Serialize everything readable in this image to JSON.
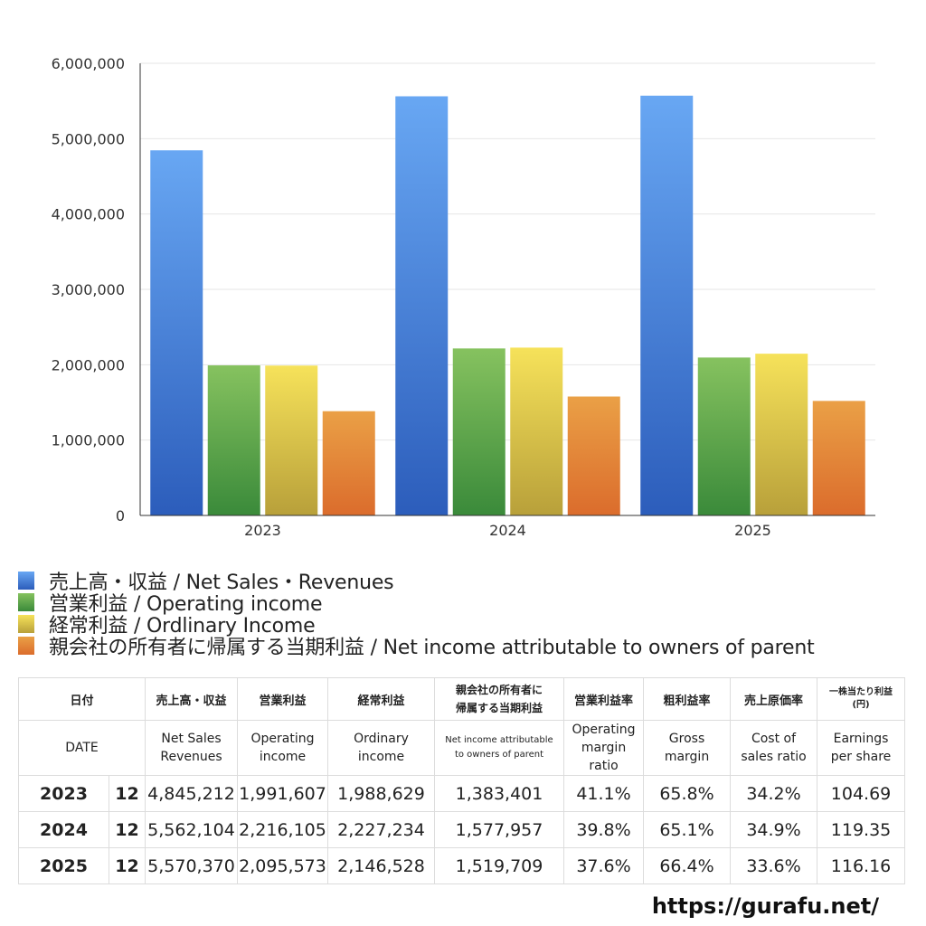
{
  "colors": {
    "net_sales": "#3f7fd9",
    "operating_income": "#4f9e45",
    "ordinary_income": "#e0c848",
    "net_income": "#e0863a"
  },
  "chart_data": {
    "type": "bar",
    "categories": [
      "2023",
      "2024",
      "2025"
    ],
    "series": [
      {
        "name": "売上高・収益 / Net Sales・Revenues",
        "values": [
          4845212,
          5562104,
          5570370
        ]
      },
      {
        "name": "営業利益 / Operating income",
        "values": [
          1991607,
          2216105,
          2095573
        ]
      },
      {
        "name": "経常利益 / Ordlinary Income",
        "values": [
          1988629,
          2227234,
          2146528
        ]
      },
      {
        "name": "親会社の所有者に帰属する当期利益 / Net income attributable to owners of parent",
        "values": [
          1383401,
          1577957,
          1519709
        ]
      }
    ],
    "ylim": [
      0,
      6000000
    ],
    "yticks": [
      "0",
      "1,000,000",
      "2,000,000",
      "3,000,000",
      "4,000,000",
      "5,000,000",
      "6,000,000"
    ],
    "grid": true,
    "legend_position": "bottom"
  },
  "legend": [
    "売上高・収益 / Net Sales・Revenues",
    "営業利益 / Operating income",
    "経常利益 / Ordlinary Income",
    "親会社の所有者に帰属する当期利益 / Net income attributable to owners of parent"
  ],
  "table": {
    "header_jp": {
      "date": "日付",
      "net_sales": "売上高・収益",
      "operating_income": "営業利益",
      "ordinary_income": "経常利益",
      "net_income_l1": "親会社の所有者に",
      "net_income_l2": "帰属する当期利益",
      "op_margin": "営業利益率",
      "gross_margin": "粗利益率",
      "cost_ratio": "売上原価率",
      "eps_l1": "一株当たり利益",
      "eps_l2": "(円)"
    },
    "header_en": {
      "date": "DATE",
      "net_sales_l1": "Net Sales",
      "net_sales_l2": "Revenues",
      "operating_income_l1": "Operating",
      "operating_income_l2": "income",
      "ordinary_income_l1": "Ordinary",
      "ordinary_income_l2": "income",
      "net_income_l1": "Net income attributable",
      "net_income_l2": "to owners of parent",
      "op_margin_l1": "Operating",
      "op_margin_l2": "margin",
      "op_margin_l3": "ratio",
      "gross_margin_l1": "Gross",
      "gross_margin_l2": "margin",
      "cost_ratio_l1": "Cost of",
      "cost_ratio_l2": "sales ratio",
      "eps_l1": "Earnings",
      "eps_l2": "per share"
    },
    "rows": [
      {
        "year": "2023",
        "month": "12",
        "net_sales": "4,845,212",
        "operating_income": "1,991,607",
        "ordinary_income": "1,988,629",
        "net_income": "1,383,401",
        "op_margin": "41.1%",
        "gross_margin": "65.8%",
        "cost_ratio": "34.2%",
        "eps": "104.69"
      },
      {
        "year": "2024",
        "month": "12",
        "net_sales": "5,562,104",
        "operating_income": "2,216,105",
        "ordinary_income": "2,227,234",
        "net_income": "1,577,957",
        "op_margin": "39.8%",
        "gross_margin": "65.1%",
        "cost_ratio": "34.9%",
        "eps": "119.35"
      },
      {
        "year": "2025",
        "month": "12",
        "net_sales": "5,570,370",
        "operating_income": "2,095,573",
        "ordinary_income": "2,146,528",
        "net_income": "1,519,709",
        "op_margin": "37.6%",
        "gross_margin": "66.4%",
        "cost_ratio": "33.6%",
        "eps": "116.16"
      }
    ]
  },
  "site_url": "https://gurafu.net/"
}
